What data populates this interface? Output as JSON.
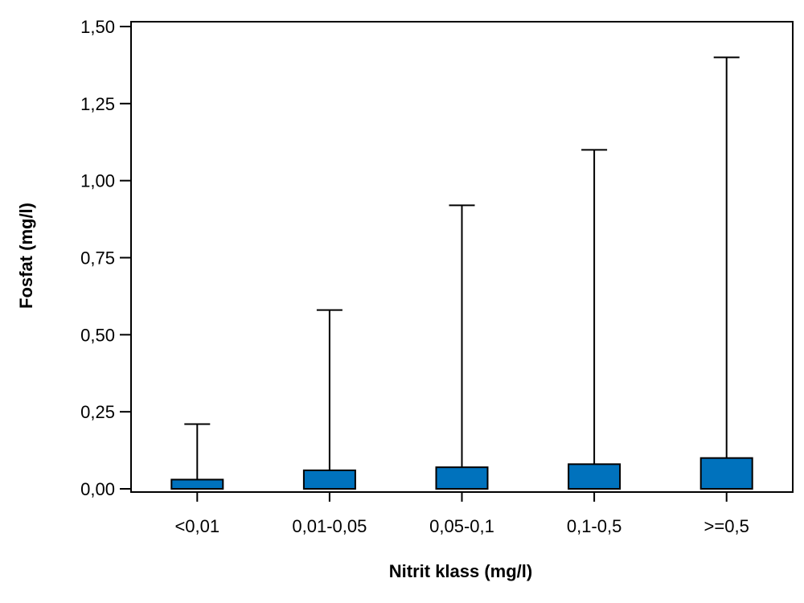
{
  "chart_data": {
    "type": "bar",
    "title": "",
    "xlabel": "Nitrit klass (mg/l)",
    "ylabel": "Fosfat (mg/l)",
    "categories": [
      "<0,01",
      "0,01-0,05",
      "0,05-0,1",
      "0,1-0,5",
      ">=0,5"
    ],
    "series": [
      {
        "values": [
          0.03,
          0.06,
          0.07,
          0.08,
          0.1
        ],
        "error_upper": [
          0.21,
          0.58,
          0.92,
          1.1,
          1.4
        ]
      }
    ],
    "ylim": [
      0,
      1.5
    ],
    "yticks": [
      0,
      0.25,
      0.5,
      0.75,
      1.0,
      1.25,
      1.5
    ],
    "ytick_labels": [
      "0,00",
      "0,25",
      "0,50",
      "0,75",
      "1,00",
      "1,25",
      "1,50"
    ],
    "grid": false,
    "legend": "none",
    "colors": {
      "bar": "#0072bd",
      "stroke": "#000000"
    }
  }
}
